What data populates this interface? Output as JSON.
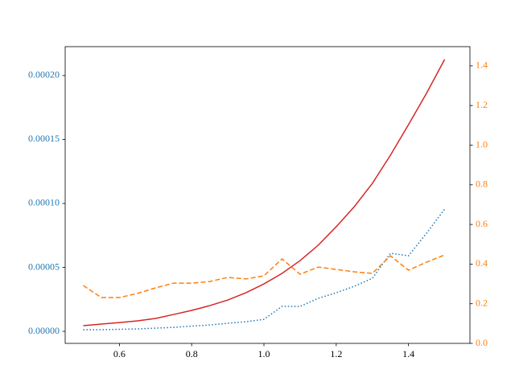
{
  "chart_data": {
    "type": "line",
    "x": [
      0.5,
      0.55,
      0.6,
      0.65,
      0.7,
      0.75,
      0.8,
      0.85,
      0.9,
      0.95,
      1.0,
      1.05,
      1.1,
      1.15,
      1.2,
      1.25,
      1.3,
      1.35,
      1.4,
      1.45,
      1.5
    ],
    "series": [
      {
        "color": "#d62728",
        "dash": "solid",
        "values": [
          4.4e-06,
          5.7e-06,
          6.9e-06,
          8.2e-06,
          1.01e-05,
          1.32e-05,
          1.64e-05,
          2.01e-05,
          2.45e-05,
          3.02e-05,
          3.71e-05,
          4.53e-05,
          5.53e-05,
          6.73e-05,
          8.18e-05,
          9.75e-05,
          0.0001157,
          0.0001377,
          0.0001616,
          0.0001862,
          0.0002126
        ]
      },
      {
        "color": "#1f77b4",
        "dash": "dotted",
        "values": [
          1.3e-06,
          1.3e-06,
          1.6e-06,
          1.9e-06,
          2.5e-06,
          3.1e-06,
          4.1e-06,
          5e-06,
          6.3e-06,
          7.5e-06,
          9.4e-06,
          1.95e-05,
          1.95e-05,
          2.58e-05,
          3.02e-05,
          3.52e-05,
          4.15e-05,
          6.1e-05,
          5.91e-05,
          7.67e-05,
          9.56e-05
        ]
      },
      {
        "color": "#ff7f0e",
        "dash": "dashed",
        "axis": "y2",
        "values": [
          0.292,
          0.231,
          0.231,
          0.252,
          0.28,
          0.304,
          0.304,
          0.312,
          0.333,
          0.325,
          0.341,
          0.426,
          0.349,
          0.385,
          0.373,
          0.361,
          0.353,
          0.442,
          0.369,
          0.41,
          0.446
        ]
      }
    ],
    "xlim": [
      0.45,
      1.57
    ],
    "xticks": [
      0.6,
      0.8,
      {
        "value": 1.0,
        "label": "1.0"
      },
      1.2,
      1.4
    ],
    "ylim": [
      -9.4e-06,
      0.0002226
    ],
    "yticks": [
      {
        "value": 0,
        "label": "0.00000"
      },
      {
        "value": 5e-05,
        "label": "0.00005"
      },
      {
        "value": 0.0001,
        "label": "0.00010"
      },
      {
        "value": 0.00015,
        "label": "0.00015"
      },
      {
        "value": 0.0002,
        "label": "0.00020"
      }
    ],
    "ycolor": "#1f77b4",
    "y2lim": [
      0,
      1.497
    ],
    "y2ticks": [
      {
        "value": 0,
        "label": "0.0"
      },
      0.2,
      0.4,
      0.6,
      0.8,
      {
        "value": 1.0,
        "label": "1.0"
      },
      1.2,
      1.4
    ],
    "y2color": "#ff7f0e",
    "grid": false
  }
}
